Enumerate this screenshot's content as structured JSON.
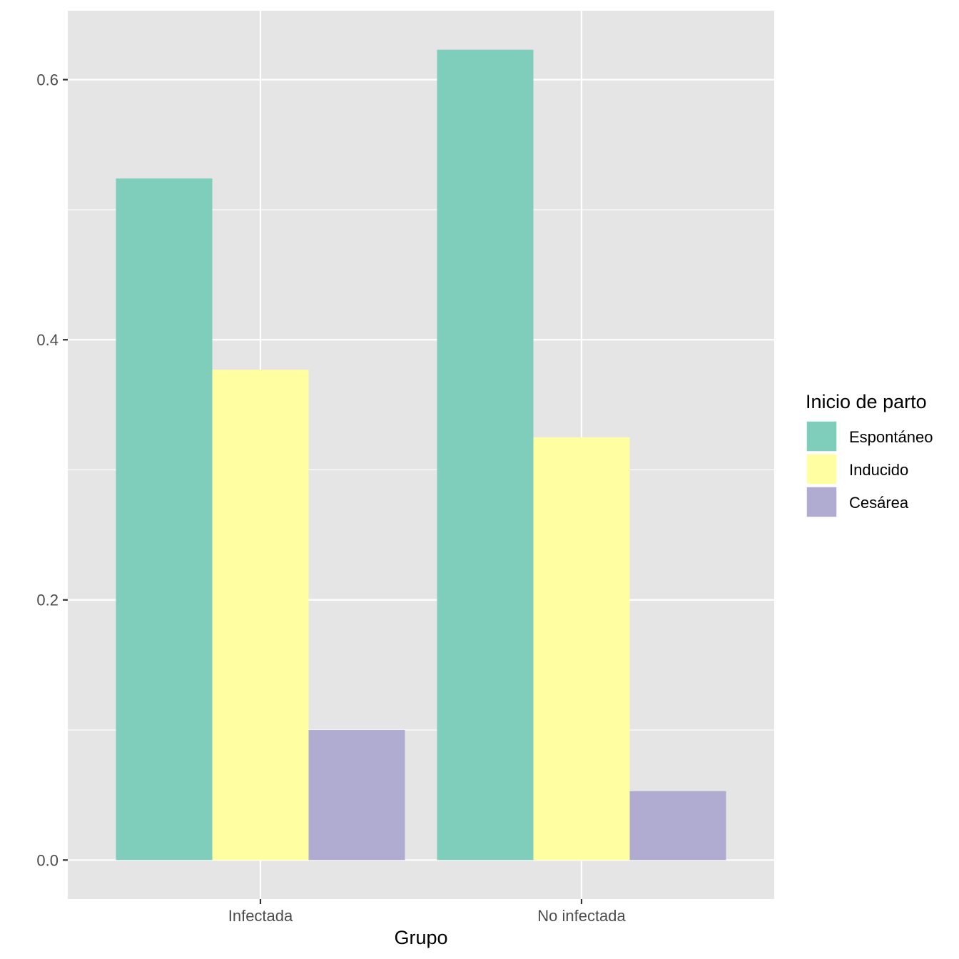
{
  "chart_data": {
    "type": "bar",
    "categories": [
      "Infectada",
      "No infectada"
    ],
    "series": [
      {
        "name": "Espontáneo",
        "values": [
          0.524,
          0.623
        ],
        "color": "#7fcdbb"
      },
      {
        "name": "Inducido",
        "values": [
          0.377,
          0.325
        ],
        "color": "#ffffa1"
      },
      {
        "name": "Cesárea",
        "values": [
          0.1,
          0.053
        ],
        "color": "#b0abd1"
      }
    ],
    "xlabel": "Grupo",
    "ylabel": "",
    "ylim": [
      -0.03,
      0.653
    ],
    "yticks": [
      0.0,
      0.2,
      0.4,
      0.6
    ],
    "ytick_labels": [
      "0.0",
      "0.2",
      "0.4",
      "0.6"
    ],
    "legend_title": "Inicio de parto",
    "legend_position": "right",
    "grid": true,
    "panel_background": "#e5e5e5",
    "grid_color": "#ffffff"
  }
}
